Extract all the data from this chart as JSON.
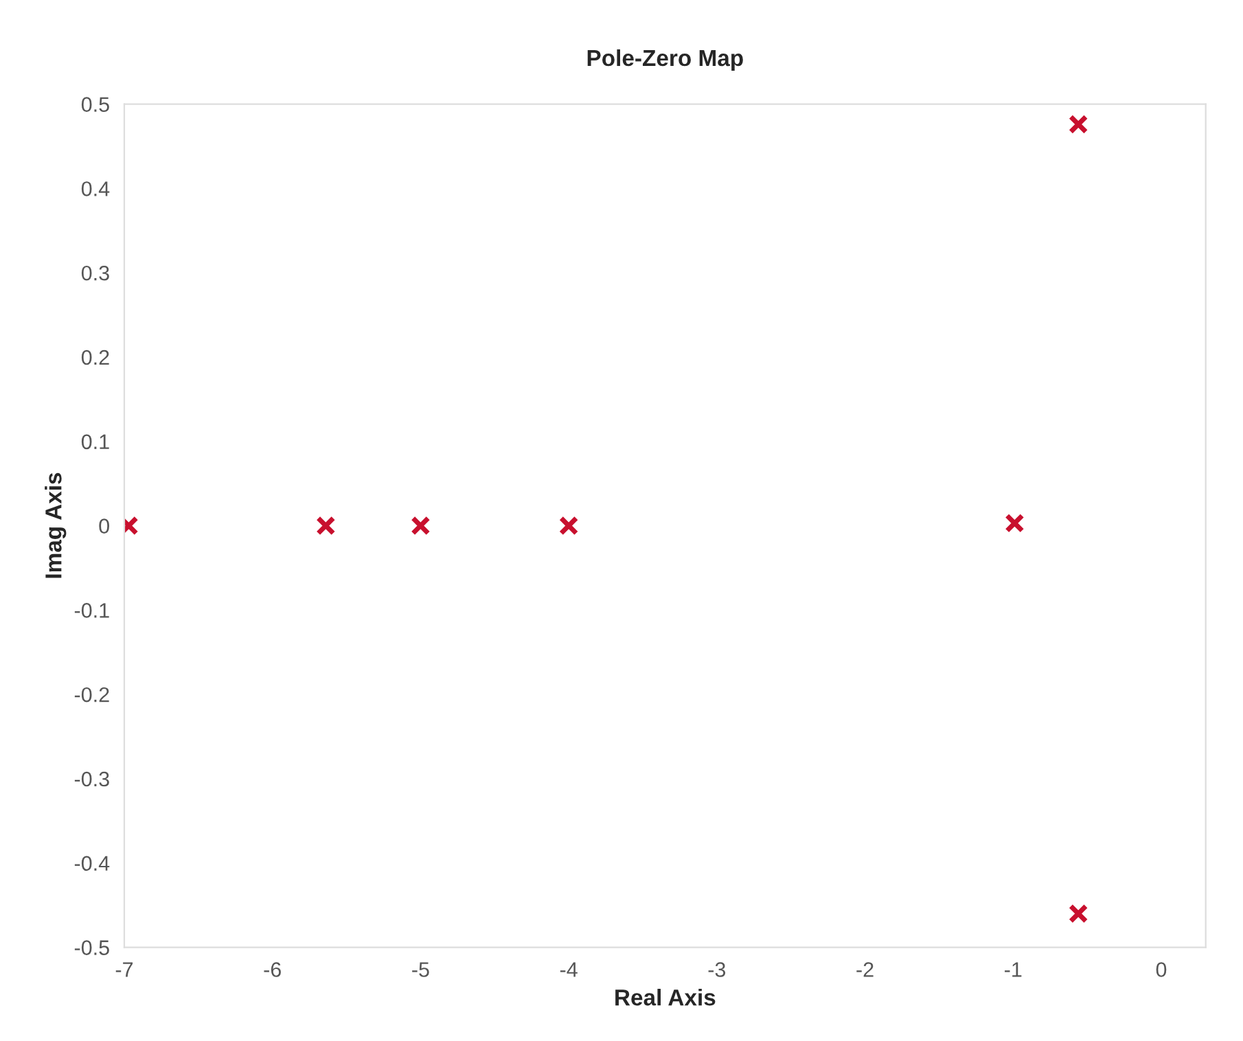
{
  "chart_data": {
    "type": "scatter",
    "title": "Pole-Zero Map",
    "xlabel": "Real Axis",
    "ylabel": "Imag Axis",
    "x": [
      -6.97,
      -5.64,
      -5.0,
      -4.0,
      -0.99,
      -0.56,
      -0.56
    ],
    "values": [
      0,
      0,
      0,
      0,
      0.003,
      0.476,
      -0.46
    ],
    "color": "#c8102e",
    "marker": "cross",
    "grid": false,
    "xlim": [
      -7,
      0.3
    ],
    "xticks": [
      -7,
      -6,
      -5,
      -4,
      -3,
      -2,
      -1,
      0
    ],
    "ylim": [
      -0.5,
      0.5
    ],
    "yticks": [
      -0.5,
      -0.4,
      -0.3,
      -0.2,
      -0.1,
      0,
      0.1,
      0.2,
      0.3,
      0.4,
      0.5
    ]
  }
}
